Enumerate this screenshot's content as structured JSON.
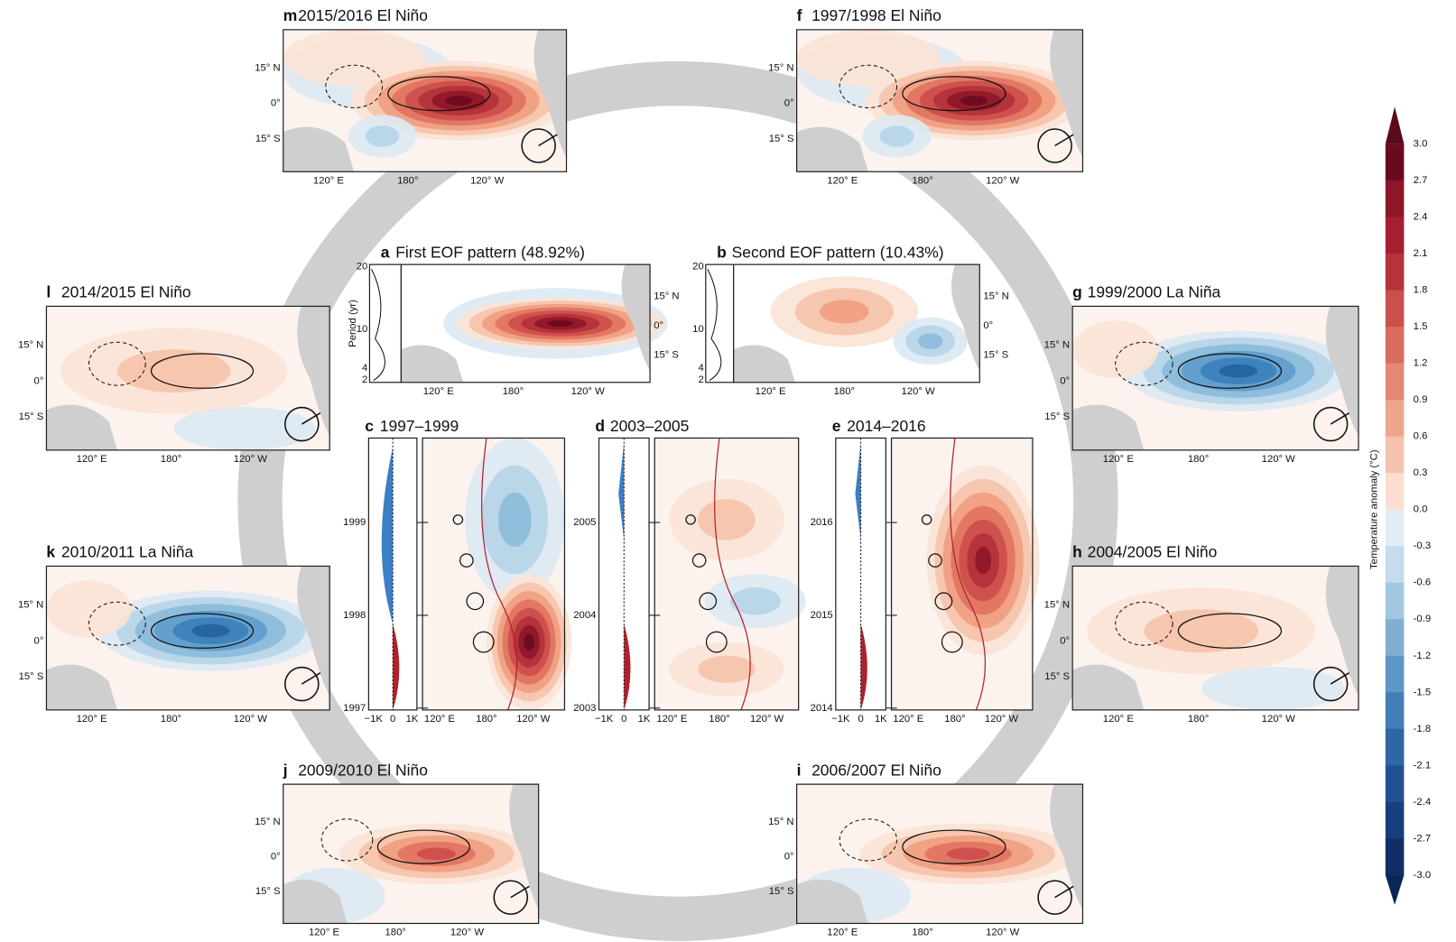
{
  "panels": [
    {
      "letter": "m",
      "title": "2015/2016 El Niño"
    },
    {
      "letter": "f",
      "title": "1997/1998 El Niño"
    },
    {
      "letter": "l",
      "title": "2014/2015 El Niño"
    },
    {
      "letter": "g",
      "title": "1999/2000 La Niña"
    },
    {
      "letter": "k",
      "title": "2010/2011 La Niña"
    },
    {
      "letter": "h",
      "title": "2004/2005 El Niño"
    },
    {
      "letter": "j",
      "title": "2009/2010 El Niño"
    },
    {
      "letter": "i",
      "title": "2006/2007 El Niño"
    }
  ],
  "map_axes": {
    "lat": [
      "15° N",
      "0°",
      "15° S"
    ],
    "lon": [
      "120° E",
      "180°",
      "120° W"
    ]
  },
  "eof": [
    {
      "letter": "a",
      "title": "First EOF pattern (48.92%)"
    },
    {
      "letter": "b",
      "title": "Second EOF pattern (10.43%)"
    }
  ],
  "period_axis": {
    "label": "Period (yr)",
    "ticks": [
      "20",
      "10",
      "4",
      "2"
    ]
  },
  "hovmoller": [
    {
      "letter": "c",
      "title": "1997–1999",
      "years": [
        "1999",
        "1998",
        "1997"
      ]
    },
    {
      "letter": "d",
      "title": "2003–2005",
      "years": [
        "2005",
        "2004",
        "2003"
      ]
    },
    {
      "letter": "e",
      "title": "2014–2016",
      "years": [
        "2016",
        "2015",
        "2014"
      ]
    }
  ],
  "hov_x": [
    "−1K",
    "0",
    "1K"
  ],
  "colorbar": {
    "label": "Temperature anomaly (°C)",
    "ticks": [
      "3.0",
      "2.7",
      "2.4",
      "2.1",
      "1.8",
      "1.5",
      "1.2",
      "0.9",
      "0.6",
      "0.3",
      "0.0",
      "-0.3",
      "-0.6",
      "-0.9",
      "-1.2",
      "-1.5",
      "-1.8",
      "-2.1",
      "-2.4",
      "-2.7",
      "-3.0"
    ]
  }
}
